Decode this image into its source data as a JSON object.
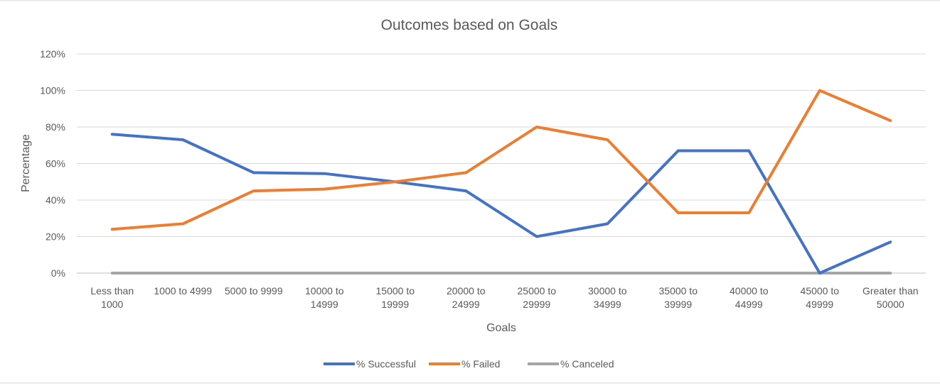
{
  "chart_data": {
    "type": "line",
    "title": "Outcomes based on Goals",
    "xlabel": "Goals",
    "ylabel": "Percentage",
    "categories": [
      [
        "Less than",
        "1000"
      ],
      [
        "1000 to 4999"
      ],
      [
        "5000 to 9999"
      ],
      [
        "10000 to",
        "14999"
      ],
      [
        "15000 to",
        "19999"
      ],
      [
        "20000 to",
        "24999"
      ],
      [
        "25000 to",
        "29999"
      ],
      [
        "30000 to",
        "34999"
      ],
      [
        "35000 to",
        "39999"
      ],
      [
        "40000 to",
        "44999"
      ],
      [
        "45000 to",
        "49999"
      ],
      [
        "Greater than",
        "50000"
      ]
    ],
    "y_ticks": [
      "0%",
      "20%",
      "40%",
      "60%",
      "80%",
      "100%",
      "120%"
    ],
    "ylim": [
      0,
      1.2
    ],
    "grid": true,
    "legend_position": "bottom",
    "series": [
      {
        "name": "% Successful",
        "color": "#4472C4",
        "values": [
          0.76,
          0.73,
          0.55,
          0.545,
          0.5,
          0.45,
          0.2,
          0.27,
          0.67,
          0.67,
          0.0,
          0.17
        ]
      },
      {
        "name": "% Failed",
        "color": "#ED7D31",
        "values": [
          0.24,
          0.27,
          0.45,
          0.46,
          0.5,
          0.55,
          0.8,
          0.73,
          0.33,
          0.33,
          1.0,
          0.835
        ]
      },
      {
        "name": "% Canceled",
        "color": "#A5A5A5",
        "values": [
          0,
          0,
          0,
          0,
          0,
          0,
          0,
          0,
          0,
          0,
          0,
          0
        ]
      }
    ]
  }
}
